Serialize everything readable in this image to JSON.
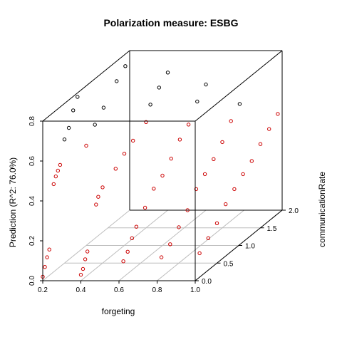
{
  "chart_data": {
    "type": "scatter",
    "title": "Polarization measure: ESBG",
    "xlabel": "forgeting",
    "ylabel": "communicationRate",
    "zlabel": "Prediction (R^2: 76.0%)",
    "xlim": [
      0.2,
      1.0
    ],
    "ylim": [
      0.0,
      2.0
    ],
    "zlim": [
      0.0,
      0.8
    ],
    "x_ticks": [
      0.2,
      0.4,
      0.6,
      0.8,
      1.0
    ],
    "y_ticks": [
      0.0,
      0.5,
      1.0,
      1.5,
      2.0
    ],
    "z_ticks": [
      0.0,
      0.2,
      0.4,
      0.6,
      0.8
    ],
    "grid": true,
    "legend": "none",
    "colors": {
      "points_upper": "#000000",
      "points_lower": "#cc0000",
      "box": "#000000",
      "grid": "#bdbdbd"
    },
    "points": [
      {
        "x": 0.2,
        "y": 0.0,
        "z": 0.02
      },
      {
        "x": 0.2,
        "y": 0.05,
        "z": 0.06
      },
      {
        "x": 0.2,
        "y": 0.1,
        "z": 0.1
      },
      {
        "x": 0.2,
        "y": 0.15,
        "z": 0.13
      },
      {
        "x": 0.2,
        "y": 0.25,
        "z": 0.44
      },
      {
        "x": 0.2,
        "y": 0.3,
        "z": 0.47
      },
      {
        "x": 0.2,
        "y": 0.35,
        "z": 0.49
      },
      {
        "x": 0.2,
        "y": 0.4,
        "z": 0.51
      },
      {
        "x": 0.2,
        "y": 0.5,
        "z": 0.62
      },
      {
        "x": 0.2,
        "y": 0.6,
        "z": 0.66
      },
      {
        "x": 0.2,
        "y": 0.7,
        "z": 0.73
      },
      {
        "x": 0.2,
        "y": 0.8,
        "z": 0.78
      },
      {
        "x": 0.2,
        "y": 1.0,
        "z": 0.5
      },
      {
        "x": 0.2,
        "y": 1.2,
        "z": 0.57
      },
      {
        "x": 0.2,
        "y": 1.4,
        "z": 0.62
      },
      {
        "x": 0.2,
        "y": 1.7,
        "z": 0.7
      },
      {
        "x": 0.2,
        "y": 1.9,
        "z": 0.74
      },
      {
        "x": 0.4,
        "y": 0.0,
        "z": 0.03
      },
      {
        "x": 0.4,
        "y": 0.05,
        "z": 0.05
      },
      {
        "x": 0.4,
        "y": 0.1,
        "z": 0.09
      },
      {
        "x": 0.4,
        "y": 0.15,
        "z": 0.12
      },
      {
        "x": 0.4,
        "y": 0.35,
        "z": 0.32
      },
      {
        "x": 0.4,
        "y": 0.4,
        "z": 0.35
      },
      {
        "x": 0.4,
        "y": 0.5,
        "z": 0.38
      },
      {
        "x": 0.4,
        "y": 0.8,
        "z": 0.42
      },
      {
        "x": 0.4,
        "y": 1.0,
        "z": 0.46
      },
      {
        "x": 0.4,
        "y": 1.2,
        "z": 0.49
      },
      {
        "x": 0.4,
        "y": 1.5,
        "z": 0.53
      },
      {
        "x": 0.4,
        "y": 1.6,
        "z": 0.6
      },
      {
        "x": 0.4,
        "y": 1.8,
        "z": 0.65
      },
      {
        "x": 0.4,
        "y": 2.0,
        "z": 0.69
      },
      {
        "x": 0.6,
        "y": 0.1,
        "z": 0.08
      },
      {
        "x": 0.6,
        "y": 0.2,
        "z": 0.11
      },
      {
        "x": 0.6,
        "y": 0.3,
        "z": 0.16
      },
      {
        "x": 0.6,
        "y": 0.4,
        "z": 0.2
      },
      {
        "x": 0.6,
        "y": 0.6,
        "z": 0.26
      },
      {
        "x": 0.6,
        "y": 0.8,
        "z": 0.32
      },
      {
        "x": 0.6,
        "y": 1.0,
        "z": 0.35
      },
      {
        "x": 0.6,
        "y": 1.2,
        "z": 0.4
      },
      {
        "x": 0.6,
        "y": 1.4,
        "z": 0.46
      },
      {
        "x": 0.6,
        "y": 1.6,
        "z": 0.5
      },
      {
        "x": 0.6,
        "y": 1.8,
        "z": 0.58
      },
      {
        "x": 0.6,
        "y": 2.0,
        "z": 0.63
      },
      {
        "x": 0.8,
        "y": 0.1,
        "z": 0.1
      },
      {
        "x": 0.8,
        "y": 0.3,
        "z": 0.13
      },
      {
        "x": 0.8,
        "y": 0.5,
        "z": 0.18
      },
      {
        "x": 0.8,
        "y": 0.7,
        "z": 0.23
      },
      {
        "x": 0.8,
        "y": 0.9,
        "z": 0.3
      },
      {
        "x": 0.8,
        "y": 1.1,
        "z": 0.34
      },
      {
        "x": 0.8,
        "y": 1.3,
        "z": 0.38
      },
      {
        "x": 0.8,
        "y": 1.5,
        "z": 0.43
      },
      {
        "x": 0.8,
        "y": 1.7,
        "z": 0.5
      },
      {
        "x": 0.8,
        "y": 1.9,
        "z": 0.55
      },
      {
        "x": 1.0,
        "y": 0.1,
        "z": 0.12
      },
      {
        "x": 1.0,
        "y": 0.3,
        "z": 0.16
      },
      {
        "x": 1.0,
        "y": 0.5,
        "z": 0.2
      },
      {
        "x": 1.0,
        "y": 0.7,
        "z": 0.26
      },
      {
        "x": 1.0,
        "y": 0.9,
        "z": 0.3
      },
      {
        "x": 1.0,
        "y": 1.1,
        "z": 0.34
      },
      {
        "x": 1.0,
        "y": 1.3,
        "z": 0.37
      },
      {
        "x": 1.0,
        "y": 1.5,
        "z": 0.42
      },
      {
        "x": 1.0,
        "y": 1.7,
        "z": 0.46
      },
      {
        "x": 1.0,
        "y": 1.9,
        "z": 0.5
      }
    ]
  }
}
